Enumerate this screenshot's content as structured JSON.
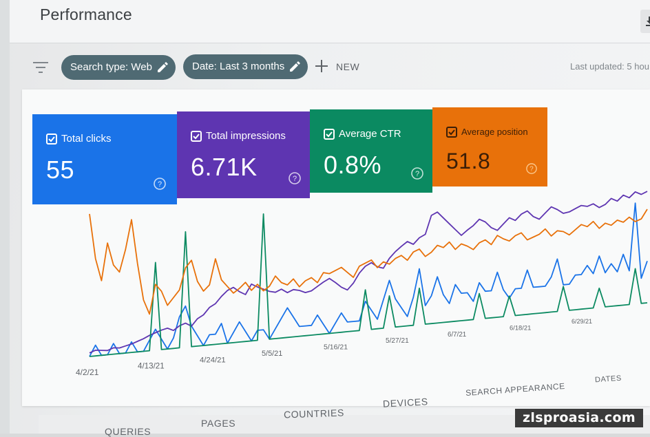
{
  "header": {
    "title": "Performance",
    "download_icon": "download-icon"
  },
  "filters": {
    "filter_icon": "filter-icon",
    "chips": [
      {
        "label": "Search type: Web",
        "icon": "pencil-icon"
      },
      {
        "label": "Date: Last 3 months",
        "icon": "pencil-icon"
      }
    ],
    "new_label": "NEW",
    "last_updated": "Last updated: 5 hou"
  },
  "metrics": [
    {
      "label": "Total clicks",
      "value": "55",
      "color": "#1a73e8",
      "checked": true
    },
    {
      "label": "Total impressions",
      "value": "6.71K",
      "color": "#5e35b1",
      "checked": true
    },
    {
      "label": "Average CTR",
      "value": "0.8%",
      "color": "#0b8a61",
      "checked": true
    },
    {
      "label": "Average position",
      "value": "51.8",
      "color": "#e8710a",
      "checked": true
    }
  ],
  "chart_data": {
    "type": "line",
    "x_tick_labels": [
      "4/2/21",
      "4/13/21",
      "4/24/21",
      "5/5/21",
      "5/16/21",
      "5/27/21",
      "6/7/21",
      "6/18/21",
      "6/29/21"
    ],
    "series": [
      {
        "name": "Total clicks",
        "color": "#1a73e8",
        "values": [
          0,
          1,
          0,
          0,
          1,
          0,
          0,
          1,
          0,
          0,
          1,
          2,
          1,
          0,
          1,
          3,
          4,
          2,
          1,
          0,
          1,
          1,
          2,
          0,
          1,
          2,
          1,
          0,
          1,
          1,
          0,
          1,
          2,
          3,
          2,
          1,
          1,
          1,
          2,
          1,
          0,
          1,
          2,
          1,
          1,
          1,
          3,
          2,
          1,
          3,
          5,
          3,
          2,
          1,
          3,
          6,
          2,
          3,
          5,
          3,
          2,
          4,
          3,
          3,
          2,
          4,
          3,
          3,
          5,
          3,
          2,
          3,
          3,
          5,
          3,
          3,
          3,
          4,
          6,
          3,
          3,
          4,
          4,
          5,
          4,
          6,
          4,
          5,
          4,
          6,
          4,
          12,
          3,
          5
        ]
      },
      {
        "name": "Total impressions",
        "color": "#5e35b1",
        "values": [
          5,
          8,
          7,
          6,
          9,
          8,
          10,
          12,
          15,
          18,
          22,
          25,
          28,
          30,
          26,
          32,
          35,
          30,
          40,
          45,
          55,
          60,
          70,
          78,
          82,
          75,
          70,
          85,
          80,
          76,
          72,
          70,
          74,
          68,
          72,
          70,
          66,
          68,
          74,
          80,
          85,
          78,
          70,
          65,
          75,
          90,
          100,
          105,
          98,
          95,
          110,
          120,
          128,
          135,
          130,
          140,
          145,
          175,
          180,
          170,
          160,
          150,
          140,
          148,
          155,
          165,
          160,
          150,
          145,
          155,
          165,
          160,
          170,
          175,
          165,
          160,
          170,
          180,
          175,
          168,
          170,
          175,
          180,
          178,
          182,
          175,
          180,
          190,
          185,
          195,
          190,
          200,
          195,
          200
        ]
      },
      {
        "name": "Average CTR",
        "color": "#0b8a61",
        "values": [
          0,
          0,
          0,
          0,
          0,
          0,
          0,
          0,
          0,
          0,
          0,
          30,
          0,
          0,
          0,
          0,
          40,
          0,
          0,
          0,
          0,
          0,
          0,
          0,
          0,
          0,
          0,
          0,
          0,
          45,
          0,
          0,
          0,
          0,
          0,
          0,
          0,
          0,
          0,
          0,
          0,
          0,
          0,
          0,
          0,
          0,
          15,
          0,
          0,
          0,
          12,
          0,
          0,
          0,
          0,
          14,
          0,
          0,
          0,
          0,
          0,
          0,
          0,
          0,
          0,
          10,
          0,
          0,
          0,
          0,
          8,
          0,
          0,
          0,
          0,
          0,
          0,
          0,
          0,
          10,
          0,
          0,
          0,
          0,
          0,
          8,
          0,
          0,
          0,
          0,
          0,
          15,
          0,
          0
        ]
      },
      {
        "name": "Average position",
        "color": "#e8710a",
        "values": [
          95,
          65,
          50,
          75,
          60,
          55,
          70,
          90,
          60,
          35,
          25,
          45,
          40,
          30,
          35,
          40,
          55,
          60,
          45,
          38,
          42,
          60,
          45,
          40,
          35,
          38,
          42,
          36,
          40,
          35,
          38,
          45,
          40,
          38,
          42,
          36,
          40,
          42,
          38,
          45,
          44,
          46,
          48,
          44,
          40,
          48,
          50,
          52,
          46,
          50,
          48,
          52,
          54,
          50,
          56,
          58,
          52,
          55,
          60,
          58,
          62,
          56,
          60,
          58,
          55,
          60,
          62,
          58,
          65,
          62,
          60,
          64,
          66,
          60,
          62,
          64,
          68,
          62,
          66,
          65,
          62,
          66,
          70,
          68,
          72,
          66,
          70,
          68,
          72,
          70,
          74,
          70,
          72,
          80
        ]
      }
    ],
    "grid": false,
    "legend": "none"
  },
  "tabs": [
    "QUERIES",
    "PAGES",
    "COUNTRIES",
    "DEVICES",
    "SEARCH APPEARANCE",
    "DATES"
  ],
  "watermark": "zlsproasia.com"
}
